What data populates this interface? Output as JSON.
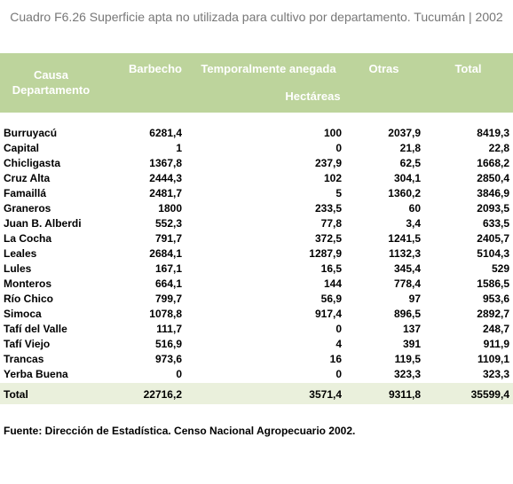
{
  "header": {
    "title": "Cuadro F6.26 Superficie apta no utilizada para cultivo por departamento. Tucumán | 2002"
  },
  "table": {
    "row_header": [
      "Causa",
      "Departamento"
    ],
    "columns": [
      "Barbecho",
      "Temporalmente anegada",
      "Otras",
      "Total"
    ],
    "unit": "Hectáreas",
    "rows": [
      [
        "Burruyacú",
        "6281,4",
        "100",
        "2037,9",
        "8419,3"
      ],
      [
        "Capital",
        "1",
        "0",
        "21,8",
        "22,8"
      ],
      [
        "Chicligasta",
        "1367,8",
        "237,9",
        "62,5",
        "1668,2"
      ],
      [
        "Cruz Alta",
        "2444,3",
        "102",
        "304,1",
        "2850,4"
      ],
      [
        "Famaillá",
        "2481,7",
        "5",
        "1360,2",
        "3846,9"
      ],
      [
        "Graneros",
        "1800",
        "233,5",
        "60",
        "2093,5"
      ],
      [
        "Juan B. Alberdi",
        "552,3",
        "77,8",
        "3,4",
        "633,5"
      ],
      [
        "La Cocha",
        "791,7",
        "372,5",
        "1241,5",
        "2405,7"
      ],
      [
        "Leales",
        "2684,1",
        "1287,9",
        "1132,3",
        "5104,3"
      ],
      [
        "Lules",
        "167,1",
        "16,5",
        "345,4",
        "529"
      ],
      [
        "Monteros",
        "664,1",
        "144",
        "778,4",
        "1586,5"
      ],
      [
        "Río Chico",
        "799,7",
        "56,9",
        "97",
        "953,6"
      ],
      [
        "Simoca",
        "1078,8",
        "917,4",
        "896,5",
        "2892,7"
      ],
      [
        "Tafí del Valle",
        "111,7",
        "0",
        "137",
        "248,7"
      ],
      [
        "Tafí Viejo",
        "516,9",
        "4",
        "391",
        "911,9"
      ],
      [
        "Trancas",
        "973,6",
        "16",
        "119,5",
        "1109,1"
      ],
      [
        "Yerba Buena",
        "0",
        "0",
        "323,3",
        "323,3"
      ]
    ],
    "total": [
      "Total",
      "22716,2",
      "3571,4",
      "9311,8",
      "35599,4"
    ]
  },
  "footer": {
    "source": "Fuente: Dirección de Estadística. Censo Nacional Agropecuario 2002."
  }
}
